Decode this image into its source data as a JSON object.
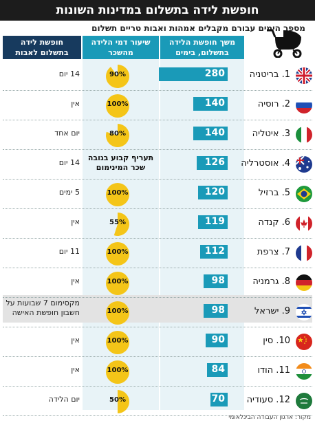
{
  "title": "חופשת לידה בתשלום במדינות השונות",
  "subtitle": "מספר הימים עבורם מקבלים אמהות ואבות טריים תשלום",
  "headers": {
    "days": "משך חופשת הלידה\nבתשלום, בימים",
    "rate": "שיעור דמי הלידה\nמהשכר",
    "father": "חופשת לידה\nבתשלום לאבות"
  },
  "source": "מקור: ארגון העבודה הבינלאומי",
  "colors": {
    "bar": "#1a9ab8",
    "pie": "#f4c518",
    "header_dark": "#173a5e",
    "title_bg": "#1c1c1c"
  },
  "chart_data": {
    "type": "bar",
    "title": "חופשת לידה בתשלום במדינות השונות",
    "categories": [
      "1. בריטניה",
      "2. רוסיה",
      "3. איטליה",
      "4. אוסטרליה",
      "5. ברזיל",
      "6. קנדה",
      "7. צרפת",
      "8. גרמניה",
      "9. ישראל",
      "10. סין",
      "11. הודו",
      "12. סעודיה"
    ],
    "series": [
      {
        "name": "משך חופשת הלידה בתשלום, בימים",
        "values": [
          280,
          140,
          140,
          126,
          120,
          119,
          112,
          98,
          98,
          90,
          84,
          70
        ]
      },
      {
        "name": "שיעור דמי הלידה מהשכר",
        "values": [
          90,
          100,
          80,
          null,
          100,
          55,
          100,
          100,
          100,
          100,
          100,
          50
        ]
      }
    ],
    "rate_labels": [
      "90%",
      "100%",
      "80%",
      "תעריף קבוע בגובה שכר המינימום",
      "100%",
      "55%",
      "100%",
      "100%",
      "100%",
      "100%",
      "100%",
      "50%"
    ],
    "father_leave": [
      "14 יום",
      "אין",
      "יום אחד",
      "14 יום",
      "5 ימים",
      "אין",
      "11 יום",
      "אין",
      "מקסימום 7 שבועות על חשבון חופשת האישה",
      "אין",
      "אין",
      "יום הלידה"
    ],
    "xlim": [
      0,
      280
    ]
  },
  "flags": [
    "uk",
    "russia",
    "italy",
    "australia",
    "brazil",
    "canada",
    "france",
    "germany",
    "israel",
    "china",
    "india",
    "saudi"
  ]
}
